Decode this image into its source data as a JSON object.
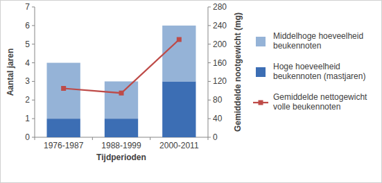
{
  "chart_data": {
    "type": "bar",
    "stacked": true,
    "categories": [
      "1976-1987",
      "1988-1999",
      "2000-2011"
    ],
    "x_label": "Tijdperioden",
    "y_label": "Aantal jaren",
    "y2_label": "Gemiddelde nootgewicht (mg)",
    "ylim": [
      0,
      7
    ],
    "yticks": [
      0,
      1,
      2,
      3,
      4,
      5,
      6,
      7
    ],
    "y2lim": [
      0,
      280
    ],
    "y2ticks": [
      0,
      40,
      80,
      120,
      160,
      200,
      240,
      280
    ],
    "grid": false,
    "legend": "right",
    "series": [
      {
        "name": "Hoge hoeveelheid beukennoten (mastjaren)",
        "type": "bar",
        "color": "#3c6eb4",
        "values": [
          1,
          1,
          3
        ]
      },
      {
        "name": "Middelhoge hoeveelheid beukennoten",
        "type": "bar",
        "color": "#95b3d7",
        "values": [
          3,
          2,
          3
        ]
      },
      {
        "name": "Gemiddelde nettogewicht volle beukennoten",
        "type": "line",
        "axis": "y2",
        "color": "#be4b48",
        "marker": "square",
        "line_style": "solid",
        "values": [
          105,
          95,
          210
        ]
      }
    ]
  }
}
